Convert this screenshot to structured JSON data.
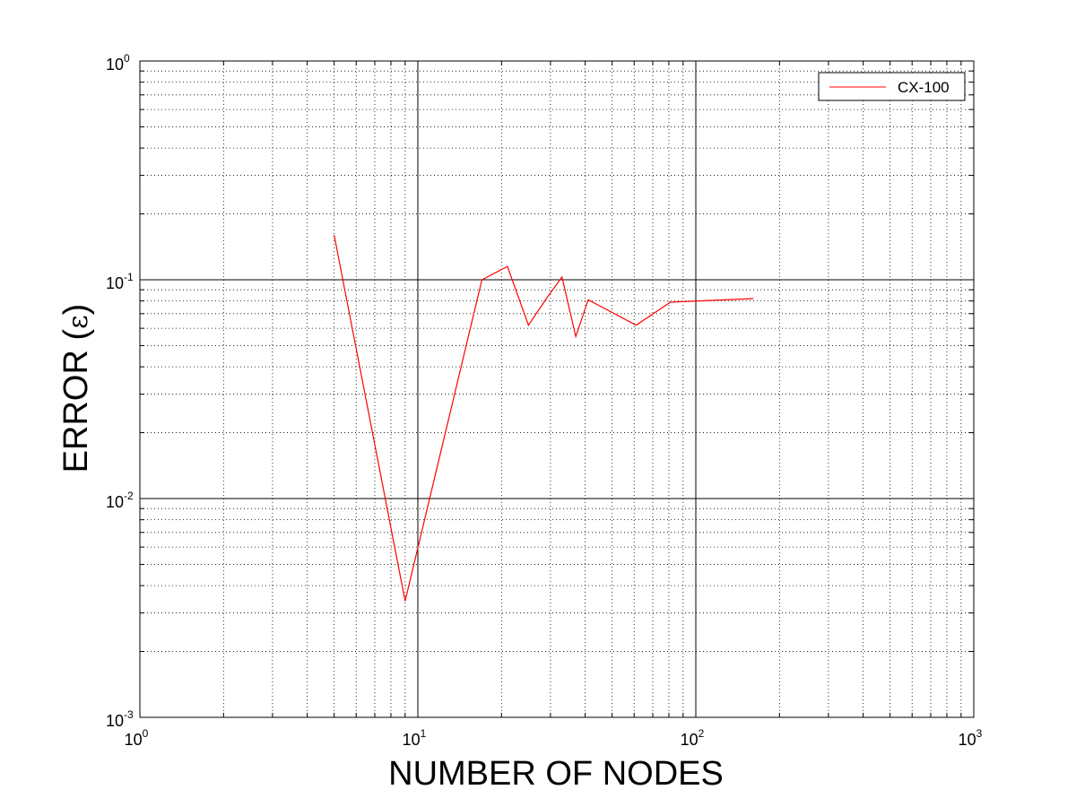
{
  "chart_data": {
    "type": "line",
    "title": "",
    "xlabel": "NUMBER OF NODES",
    "ylabel_text": "ERROR (",
    "ylabel_symbol": "ε",
    "ylabel_close": ")",
    "x_scale": "log",
    "y_scale": "log",
    "xlim": [
      1,
      1000
    ],
    "ylim": [
      0.001,
      1
    ],
    "grid": true,
    "legend_position": "top-right",
    "x_ticks": [
      {
        "base": "10",
        "exp": "0",
        "value": 1
      },
      {
        "base": "10",
        "exp": "1",
        "value": 10
      },
      {
        "base": "10",
        "exp": "2",
        "value": 100
      },
      {
        "base": "10",
        "exp": "3",
        "value": 1000
      }
    ],
    "y_ticks": [
      {
        "base": "10",
        "exp": "-3",
        "value": 0.001
      },
      {
        "base": "10",
        "exp": "-2",
        "value": 0.01
      },
      {
        "base": "10",
        "exp": "-1",
        "value": 0.1
      },
      {
        "base": "10",
        "exp": "0",
        "value": 1
      }
    ],
    "series": [
      {
        "name": "CX-100",
        "color": "#ff0000",
        "x": [
          5,
          9,
          17,
          21,
          25,
          29,
          33,
          37,
          41,
          61,
          81,
          161
        ],
        "y": [
          0.16,
          0.0034,
          0.1,
          0.115,
          0.062,
          0.082,
          0.103,
          0.055,
          0.081,
          0.062,
          0.079,
          0.082
        ]
      }
    ]
  }
}
